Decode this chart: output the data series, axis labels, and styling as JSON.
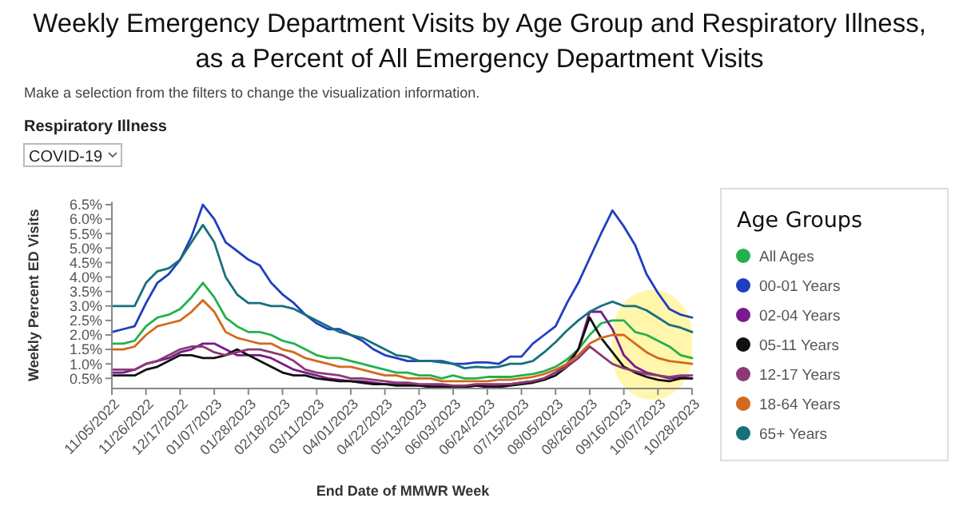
{
  "chart_data": {
    "type": "line",
    "title": "Weekly Emergency Department Visits by Age Group and Respiratory Illness, as a Percent of All Emergency Department Visits",
    "subtitle": "Make a selection from the filters to change the visualization information.",
    "annotations": [
      "Respiratory Illness",
      "COVID-19"
    ],
    "xlabel": "End Date of MMWR Week",
    "ylabel": "Weekly Percent ED Visits",
    "legend_title": "Age Groups",
    "legend": "right",
    "grid": false,
    "marker": "none",
    "line_style": "solid",
    "x": [
      "2022-11-05",
      "2022-11-12",
      "2022-11-19",
      "2022-11-26",
      "2022-12-03",
      "2022-12-10",
      "2022-12-17",
      "2022-12-24",
      "2022-12-31",
      "2023-01-07",
      "2023-01-14",
      "2023-01-21",
      "2023-01-28",
      "2023-02-04",
      "2023-02-11",
      "2023-02-18",
      "2023-02-25",
      "2023-03-04",
      "2023-03-11",
      "2023-03-18",
      "2023-03-25",
      "2023-04-01",
      "2023-04-08",
      "2023-04-15",
      "2023-04-22",
      "2023-04-29",
      "2023-05-06",
      "2023-05-13",
      "2023-05-20",
      "2023-05-27",
      "2023-06-03",
      "2023-06-10",
      "2023-06-17",
      "2023-06-24",
      "2023-07-01",
      "2023-07-08",
      "2023-07-15",
      "2023-07-22",
      "2023-07-29",
      "2023-08-05",
      "2023-08-12",
      "2023-08-19",
      "2023-08-26",
      "2023-09-02",
      "2023-09-09",
      "2023-09-16",
      "2023-09-23",
      "2023-09-30",
      "2023-10-07",
      "2023-10-14",
      "2023-10-21",
      "2023-10-28"
    ],
    "xlim": [
      "2022-11-05",
      "2023-10-28"
    ],
    "xticks": [
      {
        "value": "2022-11-05",
        "label": "11/05/2022"
      },
      {
        "value": "2022-11-26",
        "label": "11/26/2022"
      },
      {
        "value": "2022-12-17",
        "label": "12/17/2022"
      },
      {
        "value": "2023-01-07",
        "label": "01/07/2023"
      },
      {
        "value": "2023-01-28",
        "label": "01/28/2023"
      },
      {
        "value": "2023-02-18",
        "label": "02/18/2023"
      },
      {
        "value": "2023-03-11",
        "label": "03/11/2023"
      },
      {
        "value": "2023-04-01",
        "label": "04/01/2023"
      },
      {
        "value": "2023-04-22",
        "label": "04/22/2023"
      },
      {
        "value": "2023-05-13",
        "label": "05/13/2023"
      },
      {
        "value": "2023-06-03",
        "label": "06/03/2023"
      },
      {
        "value": "2023-06-24",
        "label": "06/24/2023"
      },
      {
        "value": "2023-07-15",
        "label": "07/15/2023"
      },
      {
        "value": "2023-08-05",
        "label": "08/05/2023"
      },
      {
        "value": "2023-08-26",
        "label": "08/26/2023"
      },
      {
        "value": "2023-09-16",
        "label": "09/16/2023"
      },
      {
        "value": "2023-10-07",
        "label": "10/07/2023"
      },
      {
        "value": "2023-10-28",
        "label": "10/28/2023"
      }
    ],
    "ylim": [
      0.15,
      6.6
    ],
    "yticks": [
      {
        "value": 0.5,
        "label": "0.5%"
      },
      {
        "value": 1,
        "label": "1.0%"
      },
      {
        "value": 1.5,
        "label": "1.5%"
      },
      {
        "value": 2,
        "label": "2.0%"
      },
      {
        "value": 2.5,
        "label": "2.5%"
      },
      {
        "value": 3,
        "label": "3.0%"
      },
      {
        "value": 3.5,
        "label": "3.5%"
      },
      {
        "value": 4,
        "label": "4.0%"
      },
      {
        "value": 4.5,
        "label": "4.5%"
      },
      {
        "value": 5,
        "label": "5.0%"
      },
      {
        "value": 5.5,
        "label": "5.5%"
      },
      {
        "value": 6,
        "label": "6.0%"
      },
      {
        "value": 6.5,
        "label": "6.5%"
      }
    ],
    "bands": [
      {
        "axis": "x",
        "from": "2023-09-09",
        "to": "2023-10-28",
        "color": "#fff59d"
      }
    ],
    "series": [
      {
        "name": "All Ages",
        "color": "#22b14c",
        "values": [
          1.7,
          1.7,
          1.8,
          2.3,
          2.6,
          2.7,
          2.9,
          3.3,
          3.8,
          3.3,
          2.6,
          2.3,
          2.1,
          2.1,
          2.0,
          1.8,
          1.7,
          1.5,
          1.3,
          1.2,
          1.2,
          1.1,
          1.0,
          0.9,
          0.8,
          0.7,
          0.7,
          0.6,
          0.6,
          0.5,
          0.6,
          0.5,
          0.5,
          0.55,
          0.55,
          0.55,
          0.6,
          0.65,
          0.75,
          0.9,
          1.15,
          1.5,
          2.0,
          2.4,
          2.5,
          2.5,
          2.1,
          2.0,
          1.8,
          1.6,
          1.3,
          1.2
        ]
      },
      {
        "name": "00-01 Years",
        "color": "#1f3fbf",
        "values": [
          2.1,
          2.2,
          2.3,
          3.1,
          3.8,
          4.1,
          4.6,
          5.4,
          6.5,
          6.0,
          5.2,
          4.9,
          4.6,
          4.4,
          3.8,
          3.4,
          3.1,
          2.7,
          2.4,
          2.2,
          2.2,
          2.0,
          1.8,
          1.5,
          1.3,
          1.2,
          1.1,
          1.1,
          1.1,
          1.1,
          1.0,
          1.0,
          1.05,
          1.05,
          1.0,
          1.25,
          1.25,
          1.7,
          2.0,
          2.3,
          3.1,
          3.8,
          4.65,
          5.5,
          6.3,
          5.75,
          5.1,
          4.1,
          3.45,
          2.9,
          2.7,
          2.6
        ]
      },
      {
        "name": "02-04 Years",
        "color": "#7b1a8c",
        "values": [
          0.7,
          0.7,
          0.8,
          1.0,
          1.1,
          1.2,
          1.4,
          1.5,
          1.7,
          1.7,
          1.5,
          1.3,
          1.3,
          1.3,
          1.2,
          1.0,
          0.8,
          0.7,
          0.6,
          0.5,
          0.45,
          0.4,
          0.4,
          0.35,
          0.3,
          0.3,
          0.3,
          0.25,
          0.25,
          0.25,
          0.2,
          0.2,
          0.25,
          0.25,
          0.25,
          0.3,
          0.35,
          0.4,
          0.5,
          0.7,
          1.0,
          1.5,
          2.8,
          2.8,
          2.2,
          1.3,
          0.9,
          0.7,
          0.6,
          0.5,
          0.55,
          0.5
        ]
      },
      {
        "name": "05-11 Years",
        "color": "#111111",
        "values": [
          0.6,
          0.6,
          0.6,
          0.8,
          0.9,
          1.1,
          1.3,
          1.3,
          1.2,
          1.2,
          1.3,
          1.5,
          1.3,
          1.1,
          0.9,
          0.7,
          0.6,
          0.6,
          0.5,
          0.45,
          0.4,
          0.4,
          0.35,
          0.3,
          0.3,
          0.25,
          0.25,
          0.25,
          0.2,
          0.2,
          0.2,
          0.2,
          0.25,
          0.2,
          0.2,
          0.25,
          0.3,
          0.35,
          0.45,
          0.6,
          0.9,
          1.5,
          2.6,
          1.9,
          1.4,
          0.9,
          0.7,
          0.55,
          0.45,
          0.4,
          0.5,
          0.5
        ]
      },
      {
        "name": "12-17 Years",
        "color": "#8b3a74",
        "values": [
          0.8,
          0.8,
          0.8,
          1.0,
          1.1,
          1.3,
          1.5,
          1.6,
          1.6,
          1.4,
          1.3,
          1.4,
          1.5,
          1.5,
          1.4,
          1.3,
          1.1,
          0.8,
          0.7,
          0.65,
          0.6,
          0.5,
          0.5,
          0.45,
          0.4,
          0.35,
          0.35,
          0.3,
          0.3,
          0.3,
          0.25,
          0.25,
          0.3,
          0.3,
          0.3,
          0.3,
          0.35,
          0.4,
          0.5,
          0.7,
          0.9,
          1.2,
          1.6,
          1.3,
          1.0,
          0.85,
          0.75,
          0.65,
          0.6,
          0.55,
          0.6,
          0.6
        ]
      },
      {
        "name": "18-64 Years",
        "color": "#d2691e",
        "values": [
          1.5,
          1.5,
          1.6,
          2.0,
          2.3,
          2.4,
          2.5,
          2.8,
          3.2,
          2.8,
          2.1,
          1.9,
          1.8,
          1.7,
          1.7,
          1.5,
          1.4,
          1.2,
          1.1,
          1.0,
          0.9,
          0.9,
          0.8,
          0.7,
          0.6,
          0.6,
          0.5,
          0.5,
          0.5,
          0.4,
          0.4,
          0.4,
          0.4,
          0.4,
          0.45,
          0.45,
          0.5,
          0.55,
          0.65,
          0.8,
          1.0,
          1.3,
          1.7,
          1.9,
          2.0,
          2.0,
          1.7,
          1.4,
          1.2,
          1.1,
          1.05,
          1.0
        ]
      },
      {
        "name": "65+ Years",
        "color": "#17707a",
        "values": [
          3.0,
          3.0,
          3.0,
          3.8,
          4.2,
          4.3,
          4.6,
          5.2,
          5.8,
          5.2,
          4.0,
          3.4,
          3.1,
          3.1,
          3.0,
          3.0,
          2.9,
          2.7,
          2.5,
          2.3,
          2.1,
          2.0,
          1.9,
          1.7,
          1.5,
          1.3,
          1.25,
          1.1,
          1.1,
          1.05,
          1.0,
          0.85,
          0.9,
          0.87,
          0.9,
          1.0,
          1.0,
          1.1,
          1.4,
          1.75,
          2.15,
          2.5,
          2.8,
          3.0,
          3.15,
          3.0,
          3.0,
          2.85,
          2.6,
          2.35,
          2.25,
          2.1
        ]
      }
    ]
  }
}
